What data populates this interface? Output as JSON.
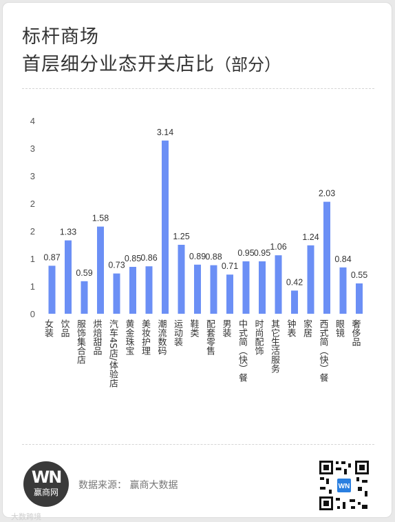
{
  "title": {
    "line1": "标杆商场",
    "line2_main": "首层细分业态开关店比",
    "line2_sub": "（部分）"
  },
  "footer": {
    "source": "数据来源：  赢商大数据",
    "logo_mark": "WN",
    "logo_name": "赢商网",
    "watermark": "大数跨境"
  },
  "colors": {
    "bar": "#6b8ff5",
    "axis_text": "#555555",
    "label_text": "#333333"
  },
  "chart_data": {
    "type": "bar",
    "categories": [
      "女装",
      "饮品",
      "服饰集合店",
      "烘焙甜品",
      "汽车4S店/体验店",
      "黄金珠宝",
      "美妆护理",
      "潮流数码",
      "运动装",
      "鞋类",
      "配套零售",
      "男装",
      "中式简（快）餐",
      "时尚配饰",
      "其它生活服务",
      "钟表",
      "家居",
      "西式简（快）餐",
      "眼镜",
      "奢侈品"
    ],
    "values": [
      0.87,
      1.33,
      0.59,
      1.58,
      0.73,
      0.85,
      0.86,
      3.14,
      1.25,
      0.89,
      0.88,
      0.71,
      0.95,
      0.95,
      1.06,
      0.42,
      1.24,
      2.03,
      0.84,
      0.55
    ],
    "y_tick_labels": [
      "0",
      "1",
      "1",
      "2",
      "2",
      "3",
      "3",
      "4"
    ],
    "ylim": [
      0,
      3.5
    ],
    "grid": false,
    "legend": "none"
  }
}
